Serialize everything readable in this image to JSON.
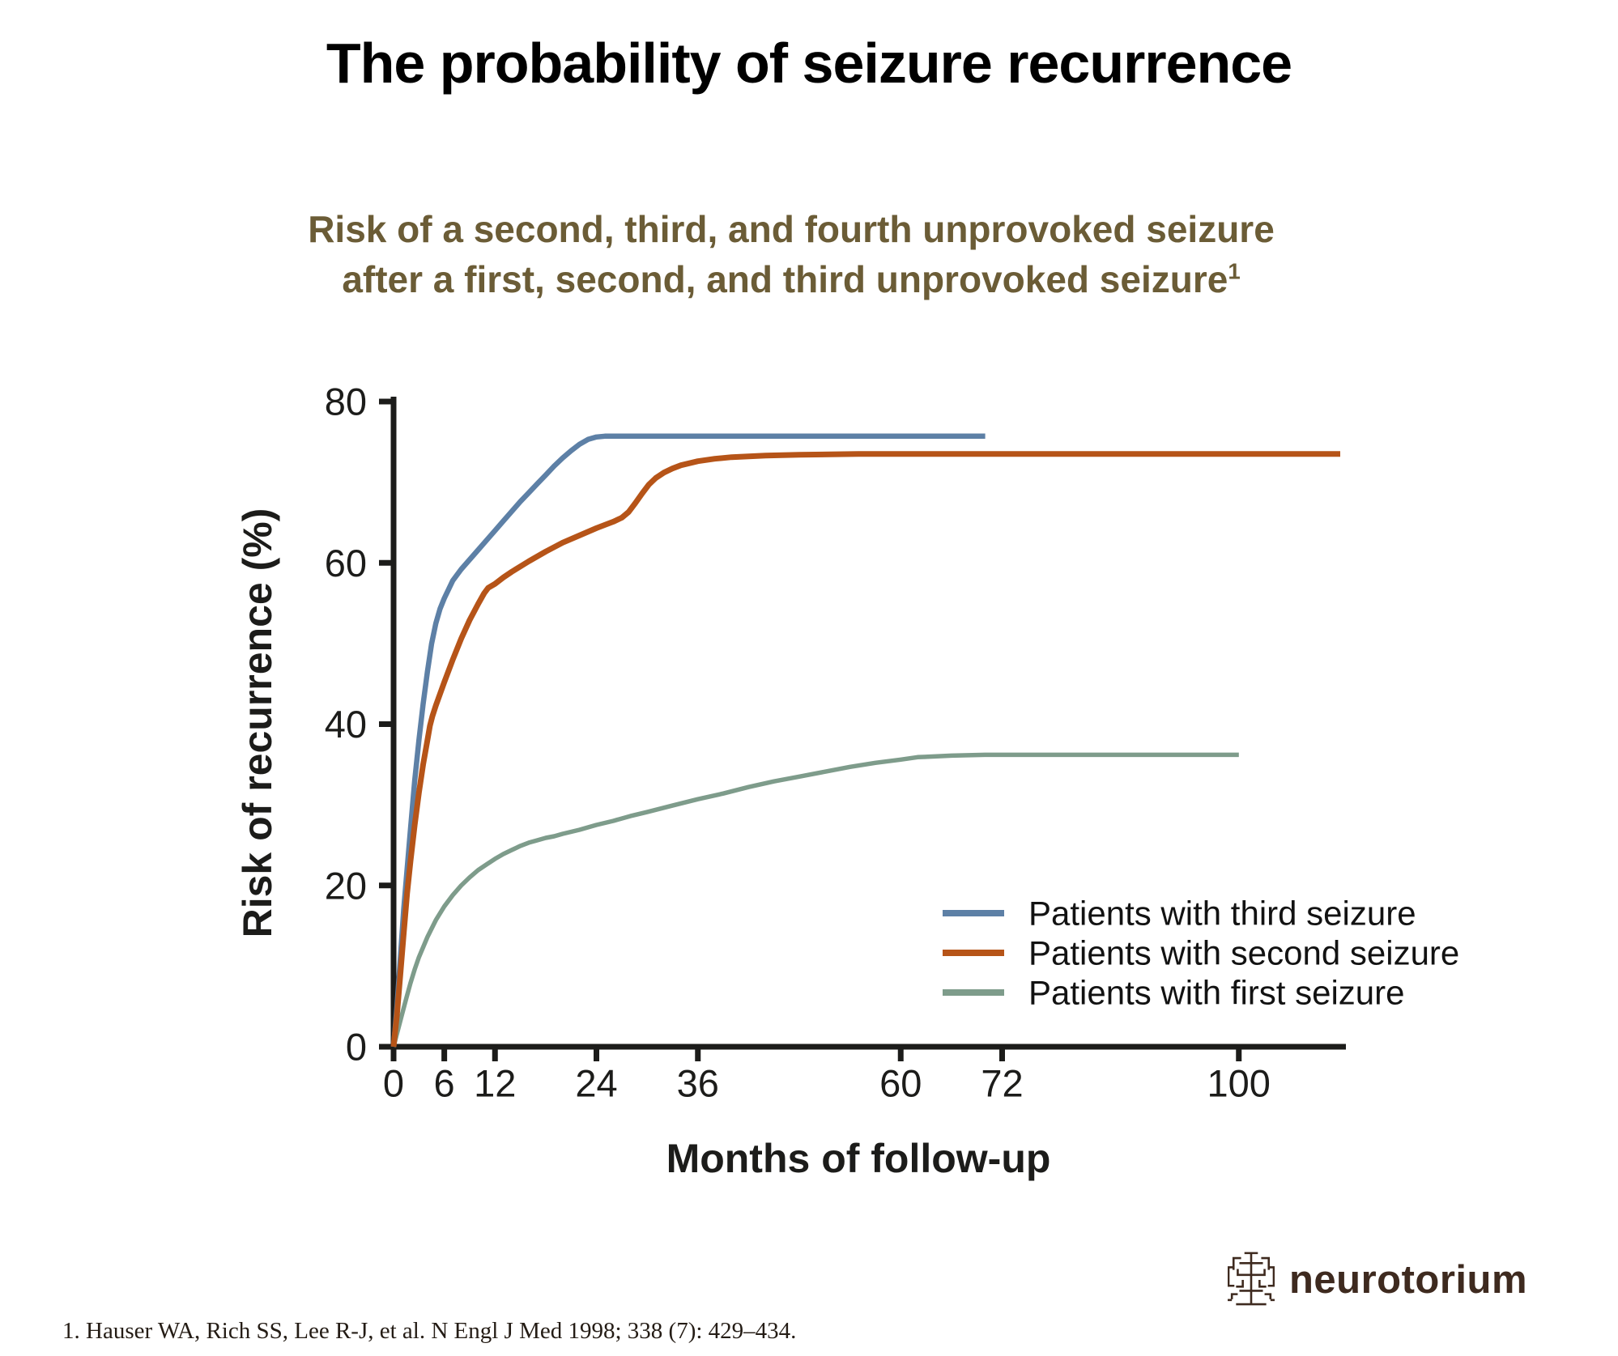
{
  "page": {
    "title": "The probability of seizure recurrence",
    "footnote": "1. Hauser WA, Rich SS, Lee R-J, et al. N Engl J Med 1998; 338 (7): 429–434.",
    "logo_text": "neurotorium"
  },
  "colors": {
    "title": "#000000",
    "chart_title": "#6b5c36",
    "axis": "#1c1c1a",
    "legend_text": "#121212",
    "footnote_text": "#241c15",
    "logo_brown": "#3e2a1f",
    "series_blue": "#5d80a6",
    "series_orange": "#b65418",
    "series_green": "#7e9c8b"
  },
  "chart_data": {
    "type": "line",
    "title_line1": "Risk of a second, third, and fourth unprovoked seizure",
    "title_line2": "after a first, second, and third unprovoked seizure",
    "title_superscript": "1",
    "xlabel": "Months of follow-up",
    "ylabel": "Risk of recurrence (%)",
    "xlim": [
      0,
      112
    ],
    "ylim": [
      0,
      80
    ],
    "x_ticks": [
      0,
      6,
      12,
      24,
      36,
      60,
      72,
      100
    ],
    "y_ticks": [
      0,
      20,
      40,
      60,
      80
    ],
    "grid": false,
    "legend_position": "inside lower right",
    "series": [
      {
        "name": "Patients with third seizure",
        "color": "#5d80a6",
        "plateau_percent": 75.7,
        "end_month": 70,
        "points": [
          [
            0,
            0
          ],
          [
            0.4,
            5
          ],
          [
            0.8,
            11
          ],
          [
            1.2,
            17
          ],
          [
            1.6,
            22
          ],
          [
            2,
            27
          ],
          [
            2.5,
            33
          ],
          [
            3,
            38
          ],
          [
            3.5,
            42.5
          ],
          [
            4,
            46.5
          ],
          [
            4.5,
            50
          ],
          [
            5,
            52.5
          ],
          [
            5.5,
            54.3
          ],
          [
            6,
            55.6
          ],
          [
            7,
            57.8
          ],
          [
            8,
            59.2
          ],
          [
            9,
            60.4
          ],
          [
            10,
            61.6
          ],
          [
            11,
            62.8
          ],
          [
            12,
            64
          ],
          [
            13,
            65.2
          ],
          [
            14,
            66.4
          ],
          [
            15,
            67.6
          ],
          [
            16,
            68.7
          ],
          [
            17,
            69.8
          ],
          [
            18,
            70.9
          ],
          [
            19,
            72
          ],
          [
            20,
            73
          ],
          [
            21,
            73.9
          ],
          [
            22,
            74.7
          ],
          [
            23,
            75.3
          ],
          [
            24,
            75.6
          ],
          [
            25,
            75.7
          ],
          [
            30,
            75.7
          ],
          [
            40,
            75.7
          ],
          [
            55,
            75.7
          ],
          [
            70,
            75.7
          ]
        ]
      },
      {
        "name": "Patients with second seizure",
        "color": "#b65418",
        "plateau_percent": 73.5,
        "end_month": 112,
        "points": [
          [
            0,
            0
          ],
          [
            0.4,
            4
          ],
          [
            0.8,
            9
          ],
          [
            1.2,
            14
          ],
          [
            1.6,
            19
          ],
          [
            2,
            23
          ],
          [
            2.5,
            27.5
          ],
          [
            3,
            31.5
          ],
          [
            3.5,
            35
          ],
          [
            4,
            38
          ],
          [
            4.3,
            39.8
          ],
          [
            4.6,
            41
          ],
          [
            5,
            42.3
          ],
          [
            6,
            45.2
          ],
          [
            7,
            48
          ],
          [
            8,
            50.6
          ],
          [
            9,
            52.9
          ],
          [
            10,
            54.9
          ],
          [
            10.7,
            56.2
          ],
          [
            11.2,
            56.9
          ],
          [
            12,
            57.4
          ],
          [
            13,
            58.2
          ],
          [
            14,
            58.9
          ],
          [
            16,
            60.2
          ],
          [
            18,
            61.4
          ],
          [
            20,
            62.5
          ],
          [
            22,
            63.4
          ],
          [
            24,
            64.3
          ],
          [
            25,
            64.7
          ],
          [
            26,
            65.1
          ],
          [
            27,
            65.6
          ],
          [
            27.8,
            66.3
          ],
          [
            28.6,
            67.4
          ],
          [
            29.4,
            68.6
          ],
          [
            30.2,
            69.7
          ],
          [
            31,
            70.5
          ],
          [
            32,
            71.2
          ],
          [
            33,
            71.7
          ],
          [
            34,
            72.1
          ],
          [
            36,
            72.6
          ],
          [
            38,
            72.9
          ],
          [
            40,
            73.1
          ],
          [
            44,
            73.3
          ],
          [
            48,
            73.4
          ],
          [
            55,
            73.5
          ],
          [
            70,
            73.5
          ],
          [
            90,
            73.5
          ],
          [
            112,
            73.5
          ]
        ]
      },
      {
        "name": "Patients with first seizure",
        "color": "#7e9c8b",
        "plateau_percent": 36.2,
        "end_month": 100,
        "points": [
          [
            0,
            0
          ],
          [
            0.5,
            2
          ],
          [
            1,
            4
          ],
          [
            1.5,
            6
          ],
          [
            2,
            7.9
          ],
          [
            2.5,
            9.6
          ],
          [
            3,
            11.1
          ],
          [
            4,
            13.6
          ],
          [
            5,
            15.7
          ],
          [
            6,
            17.4
          ],
          [
            7,
            18.8
          ],
          [
            8,
            20
          ],
          [
            9,
            21
          ],
          [
            10,
            21.9
          ],
          [
            11,
            22.6
          ],
          [
            12,
            23.3
          ],
          [
            13,
            23.9
          ],
          [
            14,
            24.4
          ],
          [
            15,
            24.9
          ],
          [
            16,
            25.3
          ],
          [
            17,
            25.6
          ],
          [
            18,
            25.9
          ],
          [
            19,
            26.1
          ],
          [
            20,
            26.4
          ],
          [
            22,
            26.9
          ],
          [
            24,
            27.5
          ],
          [
            26,
            28
          ],
          [
            28,
            28.6
          ],
          [
            30,
            29.1
          ],
          [
            33,
            29.9
          ],
          [
            36,
            30.7
          ],
          [
            39,
            31.4
          ],
          [
            42,
            32.2
          ],
          [
            45,
            32.9
          ],
          [
            48,
            33.5
          ],
          [
            51,
            34.1
          ],
          [
            54,
            34.7
          ],
          [
            57,
            35.2
          ],
          [
            60,
            35.6
          ],
          [
            62,
            35.9
          ],
          [
            64,
            36
          ],
          [
            66,
            36.1
          ],
          [
            70,
            36.2
          ],
          [
            80,
            36.2
          ],
          [
            90,
            36.2
          ],
          [
            100,
            36.2
          ]
        ]
      }
    ]
  }
}
